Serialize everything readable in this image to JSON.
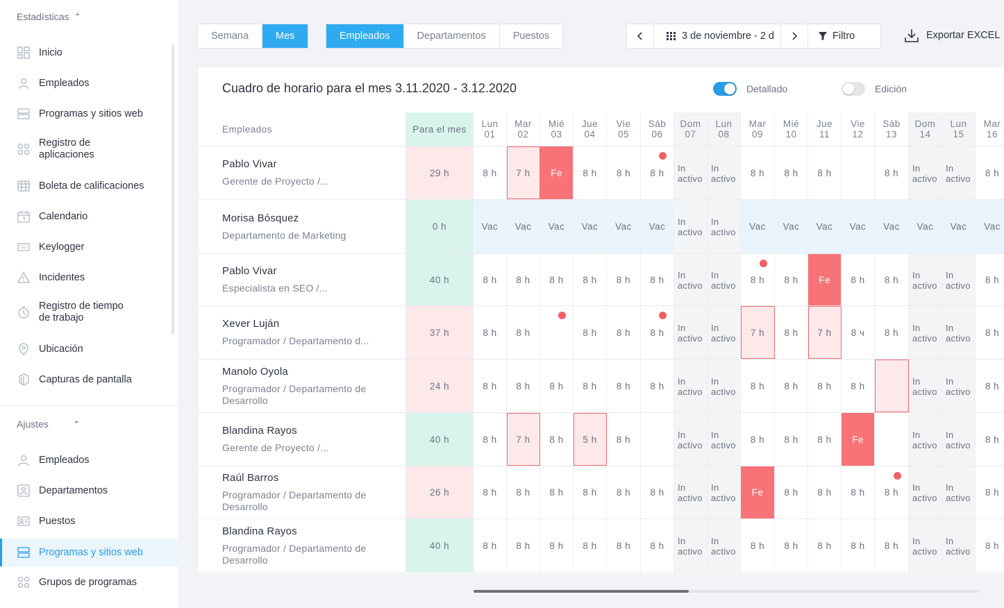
{
  "sidebar": {
    "section_stats": "Estadísticas",
    "items": [
      {
        "label": "Inicio",
        "icon": "dashboard-icon"
      },
      {
        "label": "Empleados",
        "icon": "user-icon"
      },
      {
        "label": "Programas y sitios web",
        "icon": "programs-icon"
      },
      {
        "label": "Registro de aplicaciones",
        "icon": "apps-icon"
      },
      {
        "label": "Boleta de calificaciones",
        "icon": "table-icon"
      },
      {
        "label": "Calendario",
        "icon": "calendar-icon"
      },
      {
        "label": "Keylogger",
        "icon": "keyboard-icon"
      },
      {
        "label": "Incidentes",
        "icon": "warning-icon"
      },
      {
        "label": "Registro de tiempo de trabajo",
        "icon": "stopwatch-icon"
      },
      {
        "label": "Ubicación",
        "icon": "location-icon"
      },
      {
        "label": "Capturas de pantalla",
        "icon": "screenshots-icon"
      }
    ],
    "section_settings": "Ajustes",
    "settings_items": [
      {
        "label": "Empleados",
        "icon": "user-icon"
      },
      {
        "label": "Departamentos",
        "icon": "department-icon"
      },
      {
        "label": "Puestos",
        "icon": "id-card-icon"
      },
      {
        "label": "Programas y sitios web",
        "icon": "programs-icon",
        "active": true
      },
      {
        "label": "Grupos de programas",
        "icon": "apps-icon"
      }
    ]
  },
  "toolbar": {
    "period": [
      "Semana",
      "Mes"
    ],
    "period_selected": "Mes",
    "view": [
      "Empleados",
      "Departamentos",
      "Puestos"
    ],
    "view_selected": "Empleados",
    "date_range": "3 de noviembre - 2 d",
    "filter": "Filtro",
    "export": "Exportar EXCEL"
  },
  "card": {
    "title": "Cuadro de horario para el mes 3.11.2020 - 3.12.2020",
    "toggle_detailed": "Detallado",
    "toggle_detailed_on": true,
    "toggle_edit": "Edición",
    "toggle_edit_on": false
  },
  "table": {
    "col_employees": "Empleados",
    "col_total": "Para el mes",
    "days": [
      {
        "d": "Lun",
        "n": "01"
      },
      {
        "d": "Mar",
        "n": "02"
      },
      {
        "d": "Mié",
        "n": "03"
      },
      {
        "d": "Jue",
        "n": "04"
      },
      {
        "d": "Vie",
        "n": "05"
      },
      {
        "d": "Sáb",
        "n": "06"
      },
      {
        "d": "Dom",
        "n": "07"
      },
      {
        "d": "Lun",
        "n": "08"
      },
      {
        "d": "Mar",
        "n": "09"
      },
      {
        "d": "Mié",
        "n": "10"
      },
      {
        "d": "Jue",
        "n": "11"
      },
      {
        "d": "Vie",
        "n": "12"
      },
      {
        "d": "Sáb",
        "n": "13"
      },
      {
        "d": "Dom",
        "n": "14"
      },
      {
        "d": "Lun",
        "n": "15"
      },
      {
        "d": "Mar",
        "n": "16"
      }
    ],
    "rows": [
      {
        "name": "Pablo Vivar",
        "role": "Gerente de Proyecto /...",
        "total": "29 h",
        "total_status": "low",
        "cells": [
          [
            "8 h"
          ],
          [
            "7 h",
            "box"
          ],
          [
            "Fe",
            "fe"
          ],
          [
            "8 h"
          ],
          [
            "8 h"
          ],
          [
            "8 h",
            "dot"
          ],
          [
            "In activo",
            "inactive"
          ],
          [
            "In activo",
            "inactive"
          ],
          [
            "8 h"
          ],
          [
            "8 h"
          ],
          [
            "8 h"
          ],
          [
            ""
          ],
          [
            "8 h"
          ],
          [
            "In activo",
            "inactive"
          ],
          [
            "In activo",
            "inactive"
          ],
          [
            "8 h"
          ]
        ]
      },
      {
        "name": "Morisa Bósquez",
        "role": "Departamento de Marketing",
        "total": "0 h",
        "total_status": "ok",
        "cells": [
          [
            "Vac",
            "vac"
          ],
          [
            "Vac",
            "vac"
          ],
          [
            "Vac",
            "vac"
          ],
          [
            "Vac",
            "vac"
          ],
          [
            "Vac",
            "vac"
          ],
          [
            "Vac",
            "vac"
          ],
          [
            "In activo",
            "inactive"
          ],
          [
            "In activo",
            "inactive"
          ],
          [
            "Vac",
            "vac"
          ],
          [
            "Vac",
            "vac"
          ],
          [
            "Vac",
            "vac"
          ],
          [
            "Vac",
            "vac"
          ],
          [
            "Vac",
            "vac"
          ],
          [
            "Vac",
            "vac"
          ],
          [
            "Vac",
            "vac"
          ],
          [
            "Vac",
            "vac"
          ]
        ]
      },
      {
        "name": "Pablo Vivar",
        "role": "Especialista en SEO /...",
        "total": "40 h",
        "total_status": "ok",
        "cells": [
          [
            "8 h"
          ],
          [
            "8 h"
          ],
          [
            "8 h"
          ],
          [
            "8 h"
          ],
          [
            "8 h"
          ],
          [
            "8 h"
          ],
          [
            "In activo",
            "inactive"
          ],
          [
            "In activo",
            "inactive"
          ],
          [
            "8 h",
            "dot"
          ],
          [
            "8 h"
          ],
          [
            "Fe",
            "fe"
          ],
          [
            "8 h"
          ],
          [
            "8 h"
          ],
          [
            "In activo",
            "inactive"
          ],
          [
            "In activo",
            "inactive"
          ],
          [
            "8 h"
          ]
        ]
      },
      {
        "name": "Xever Luján",
        "role": "Programador / Departamento d...",
        "total": "37 h",
        "total_status": "low",
        "cells": [
          [
            "8 h"
          ],
          [
            "8 h"
          ],
          [
            "",
            "dot"
          ],
          [
            "8 h"
          ],
          [
            "8 h"
          ],
          [
            "8 h",
            "dot"
          ],
          [
            "In activo",
            "inactive"
          ],
          [
            "In activo",
            "inactive"
          ],
          [
            "7 h",
            "box"
          ],
          [
            "8 h"
          ],
          [
            "7 h",
            "box"
          ],
          [
            "8 ч"
          ],
          [
            "8 h"
          ],
          [
            "In activo",
            "inactive"
          ],
          [
            "In activo",
            "inactive"
          ],
          [
            "8 h"
          ]
        ]
      },
      {
        "name": "Manolo Oyola",
        "role": "Programador / Departamento de Desarrollo",
        "total": "24 h",
        "total_status": "low",
        "cells": [
          [
            "8 h"
          ],
          [
            "8 h"
          ],
          [
            "8 h"
          ],
          [
            "8 h"
          ],
          [
            "8 h"
          ],
          [
            "8 h"
          ],
          [
            "In activo",
            "inactive"
          ],
          [
            "In activo",
            "inactive"
          ],
          [
            "8 h"
          ],
          [
            "8 h"
          ],
          [
            "8 h"
          ],
          [
            "8 h"
          ],
          [
            "",
            "box"
          ],
          [
            "In activo",
            "inactive"
          ],
          [
            "In activo",
            "inactive"
          ],
          [
            "8 h"
          ]
        ]
      },
      {
        "name": "Blandina Rayos",
        "role": "Gerente de Proyecto /...",
        "total": "40 h",
        "total_status": "ok",
        "cells": [
          [
            "8 h"
          ],
          [
            "7 h",
            "box"
          ],
          [
            "8 h"
          ],
          [
            "5 h",
            "box"
          ],
          [
            "8 h"
          ],
          [
            ""
          ],
          [
            "In activo",
            "inactive"
          ],
          [
            "In activo",
            "inactive"
          ],
          [
            "8 h"
          ],
          [
            "8 h"
          ],
          [
            "8 h"
          ],
          [
            "Fe",
            "fe"
          ],
          [
            ""
          ],
          [
            "In activo",
            "inactive"
          ],
          [
            "In activo",
            "inactive"
          ],
          [
            "8 h"
          ]
        ]
      },
      {
        "name": "Raúl Barros",
        "role": "Programador / Departamento de Desarrollo",
        "total": "26 h",
        "total_status": "low",
        "cells": [
          [
            "8 h"
          ],
          [
            "8 h"
          ],
          [
            "8 h"
          ],
          [
            "8 h"
          ],
          [
            "8 h"
          ],
          [
            "8 h"
          ],
          [
            "In activo",
            "inactive"
          ],
          [
            "In activo",
            "inactive"
          ],
          [
            "Fe",
            "fe"
          ],
          [
            "8 h"
          ],
          [
            "8 h"
          ],
          [
            "8 h"
          ],
          [
            "8 h",
            "dot"
          ],
          [
            "In activo",
            "inactive"
          ],
          [
            "In activo",
            "inactive"
          ],
          [
            "8 h"
          ]
        ]
      },
      {
        "name": "Blandina Rayos",
        "role": "Programador / Departamento de Desarrollo",
        "total": "40 h",
        "total_status": "ok",
        "cells": [
          [
            "8 h"
          ],
          [
            "8 h"
          ],
          [
            "8 h"
          ],
          [
            "8 h"
          ],
          [
            "8 h"
          ],
          [
            "8 h"
          ],
          [
            "In activo",
            "inactive"
          ],
          [
            "In activo",
            "inactive"
          ],
          [
            "8 h"
          ],
          [
            "8 h"
          ],
          [
            "8 h"
          ],
          [
            "8 h"
          ],
          [
            "8 h"
          ],
          [
            "In activo",
            "inactive"
          ],
          [
            "In activo",
            "inactive"
          ],
          [
            "8 h"
          ]
        ]
      }
    ]
  },
  "colors": {
    "accent": "#2eaaf0",
    "holiday": "#f87378",
    "under_hours": "#fde8ea",
    "full_hours": "#d9f4ec",
    "vacation": "#e9f4fc",
    "alert_dot": "#f35f67"
  }
}
